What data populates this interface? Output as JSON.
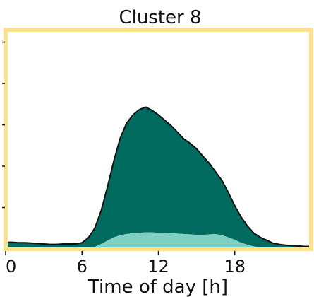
{
  "chart_data": {
    "type": "area",
    "title": "Cluster 8",
    "xlabel": "Time of day [h]",
    "ylabel": "",
    "xlim": [
      0,
      24
    ],
    "ylim": [
      0,
      5.3
    ],
    "xticks": [
      0,
      6,
      12,
      18
    ],
    "xtick_labels": [
      "0",
      "6",
      "12",
      "18"
    ],
    "yticks": [
      1,
      2,
      3,
      4,
      5
    ],
    "grid": false,
    "legend": "none",
    "stacked": true,
    "colors": {
      "lower": "#7fcfc2",
      "upper": "#006b5e",
      "outline": "#111111",
      "frame": "#fbe08e"
    },
    "x": [
      0,
      0.5,
      1,
      1.5,
      2,
      2.5,
      3,
      3.5,
      4,
      4.5,
      5,
      5.5,
      6,
      6.5,
      7,
      7.5,
      8,
      8.5,
      9,
      9.5,
      10,
      10.5,
      11,
      11.5,
      12,
      12.5,
      13,
      13.5,
      14,
      14.5,
      15,
      15.5,
      16,
      16.5,
      17,
      17.5,
      18,
      18.5,
      19,
      19.5,
      20,
      20.5,
      21,
      21.5,
      22,
      22.5,
      23,
      23.5,
      24
    ],
    "series": [
      {
        "values": [
          0.02,
          0.02,
          0.02,
          0.02,
          0.02,
          0.02,
          0.02,
          0.02,
          0.02,
          0.02,
          0.02,
          0.02,
          0.02,
          0.03,
          0.05,
          0.12,
          0.2,
          0.28,
          0.33,
          0.36,
          0.38,
          0.39,
          0.4,
          0.4,
          0.39,
          0.39,
          0.38,
          0.37,
          0.36,
          0.35,
          0.34,
          0.34,
          0.35,
          0.36,
          0.33,
          0.28,
          0.22,
          0.15,
          0.1,
          0.06,
          0.04,
          0.03,
          0.02,
          0.02,
          0.02,
          0.02,
          0.02,
          0.02,
          0.02
        ]
      },
      {
        "values": [
          0.14,
          0.14,
          0.13,
          0.13,
          0.12,
          0.11,
          0.1,
          0.09,
          0.09,
          0.1,
          0.1,
          0.1,
          0.13,
          0.24,
          0.45,
          0.8,
          1.3,
          1.85,
          2.35,
          2.68,
          2.86,
          2.98,
          3.03,
          2.95,
          2.85,
          2.72,
          2.6,
          2.45,
          2.3,
          2.2,
          2.08,
          1.9,
          1.72,
          1.5,
          1.32,
          1.08,
          0.82,
          0.62,
          0.45,
          0.32,
          0.24,
          0.18,
          0.12,
          0.09,
          0.07,
          0.06,
          0.05,
          0.04,
          0.04
        ]
      }
    ]
  }
}
